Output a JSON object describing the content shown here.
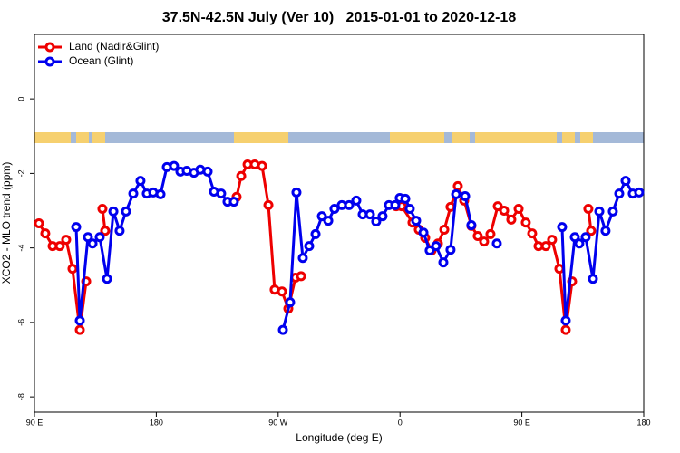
{
  "chart_data": {
    "type": "line",
    "title": "37.5N-42.5N July (Ver 10)   2015-01-01 to 2020-12-18",
    "xlabel": "Longitude (deg E)",
    "ylabel": "XCO2 - MLO trend (ppm)",
    "xlim": [
      90,
      540
    ],
    "ylim": [
      -8.41,
      1.73
    ],
    "xticks": [
      {
        "value": 90,
        "label": "90 E"
      },
      180,
      {
        "value": 270,
        "label": "90 W"
      },
      {
        "value": 360,
        "label": "0"
      },
      {
        "value": 450,
        "label": "90 E"
      },
      {
        "value": 540,
        "label": "180"
      }
    ],
    "yticks": [
      0,
      -2,
      -4,
      -6,
      -8
    ],
    "grid": false,
    "legend": "top-left",
    "series": [
      {
        "name": "Land (Nadir&Glint)",
        "color": "#ee0000",
        "x": [
          93.3,
          98.0,
          103.4,
          108.7,
          113.4,
          118.1,
          123.5,
          128.2,
          null,
          140.2,
          142.2,
          null,
          239.3,
          242.7,
          247.4,
          252.7,
          258.1,
          262.8,
          267.4,
          272.8,
          277.5,
          282.8,
          286.9,
          null,
          357.2,
          361.2,
          369.2,
          373.9,
          378.6,
          383.3,
          388.0,
          392.7,
          397.3,
          402.7,
          407.4,
          412.7,
          417.4,
          422.1,
          426.8,
          432.2,
          436.9,
          442.2,
          447.6,
          452.9,
          457.6,
          462.3,
          467.7,
          472.3,
          477.7,
          482.4,
          487.1,
          null,
          499.1,
          501.1
        ],
        "values": [
          -3.34,
          -3.61,
          -3.95,
          -3.95,
          -3.78,
          -4.56,
          -6.2,
          -4.9,
          null,
          -2.95,
          -3.54,
          null,
          -2.63,
          -2.07,
          -1.76,
          -1.76,
          -1.8,
          -2.85,
          -5.12,
          -5.17,
          -5.63,
          -4.8,
          -4.76,
          null,
          -2.88,
          -2.88,
          -3.32,
          -3.51,
          -3.73,
          -4.07,
          -3.88,
          -3.51,
          -2.9,
          -2.34,
          -2.73,
          -3.41,
          -3.68,
          -3.83,
          -3.63,
          -2.88,
          -3.0,
          -3.24,
          -2.95,
          -3.32,
          -3.61,
          -3.95,
          -3.95,
          -3.78,
          -4.56,
          -6.2,
          -4.9,
          null,
          -2.95,
          -3.54
        ]
      },
      {
        "name": "Ocean (Glint)",
        "color": "#0000ee",
        "x": [
          120.8,
          123.5,
          129.5,
          132.9,
          138.2,
          143.6,
          148.3,
          152.9,
          157.6,
          163.0,
          168.3,
          173.0,
          177.7,
          183.1,
          187.8,
          193.1,
          197.8,
          202.5,
          207.8,
          212.5,
          217.9,
          222.6,
          227.9,
          232.6,
          237.3,
          null,
          273.5,
          278.8,
          283.5,
          288.2,
          292.9,
          297.6,
          302.3,
          307.0,
          311.6,
          317.0,
          322.4,
          327.7,
          332.4,
          337.8,
          342.4,
          347.1,
          351.8,
          356.5,
          359.8,
          363.9,
          367.2,
          371.9,
          377.3,
          381.9,
          386.6,
          392.0,
          397.3,
          401.4,
          408.1,
          412.7,
          null,
          431.5,
          null,
          479.7,
          482.4,
          489.1,
          492.4,
          497.1,
          502.5,
          507.2,
          511.8,
          517.2,
          521.9,
          526.6,
          531.9,
          536.6
        ],
        "values": [
          -3.44,
          -5.95,
          -3.71,
          -3.88,
          -3.71,
          -4.83,
          -3.02,
          -3.54,
          -3.02,
          -2.54,
          -2.2,
          -2.54,
          -2.51,
          -2.56,
          -1.83,
          -1.8,
          -1.95,
          -1.93,
          -1.98,
          -1.9,
          -1.95,
          -2.49,
          -2.54,
          -2.76,
          -2.76,
          null,
          -6.2,
          -5.46,
          -2.51,
          -4.27,
          -3.95,
          -3.63,
          -3.15,
          -3.27,
          -2.95,
          -2.85,
          -2.85,
          -2.73,
          -3.1,
          -3.1,
          -3.29,
          -3.15,
          -2.85,
          -2.85,
          -2.66,
          -2.68,
          -2.95,
          -3.27,
          -3.59,
          -4.07,
          -3.95,
          -4.39,
          -4.05,
          -2.56,
          -2.61,
          -3.39,
          null,
          -3.88,
          null,
          -3.44,
          -5.95,
          -3.71,
          -3.88,
          -3.71,
          -4.83,
          -3.02,
          -3.54,
          -3.02,
          -2.54,
          -2.2,
          -2.54,
          -2.51
        ]
      }
    ]
  }
}
